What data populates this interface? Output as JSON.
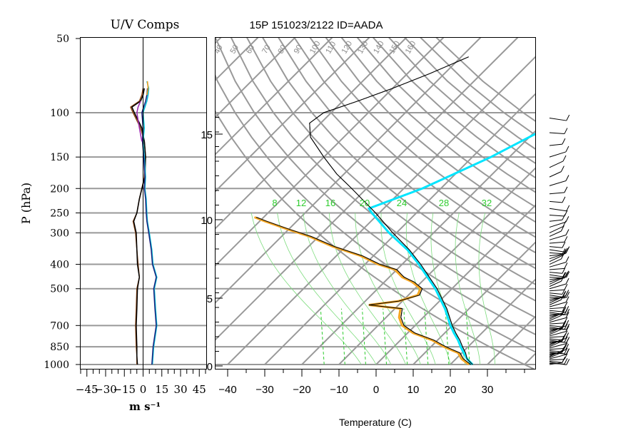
{
  "chart_data": [
    {
      "type": "line",
      "title": "U/V Comps",
      "ylabel": "P (hPa)",
      "xlabel": "m s⁻¹",
      "y_scale": "log",
      "ylim": [
        1000,
        50
      ],
      "xlim": [
        -50,
        50
      ],
      "yticks": [
        {
          "value": 50,
          "label": "50"
        },
        {
          "value": 100,
          "label": "100"
        },
        {
          "value": 150,
          "label": "150"
        },
        {
          "value": 200,
          "label": "200"
        },
        {
          "value": 250,
          "label": "250"
        },
        {
          "value": 300,
          "label": "300"
        },
        {
          "value": 400,
          "label": "400"
        },
        {
          "value": 500,
          "label": "500"
        },
        {
          "value": 700,
          "label": "700"
        },
        {
          "value": 850,
          "label": "850"
        },
        {
          "value": 1000,
          "label": "1000"
        }
      ],
      "gridlines_hpa": [
        100,
        150,
        200,
        250,
        300,
        400,
        500,
        700,
        850,
        1000
      ],
      "xticks": [
        {
          "value": -45,
          "label": "−45"
        },
        {
          "value": -30,
          "label": "−30"
        },
        {
          "value": -15,
          "label": "−15"
        },
        {
          "value": 0,
          "label": "0"
        },
        {
          "value": 15,
          "label": "15"
        },
        {
          "value": 30,
          "label": "30"
        },
        {
          "value": 45,
          "label": "45"
        }
      ],
      "series": [
        {
          "color": "#8b4513",
          "points": [
            [
              1000,
              -5
            ],
            [
              925,
              -5
            ],
            [
              850,
              -5.5
            ],
            [
              700,
              -6
            ],
            [
              600,
              -5.5
            ],
            [
              500,
              -5
            ],
            [
              450,
              -3
            ],
            [
              400,
              -4
            ],
            [
              350,
              -5
            ],
            [
              300,
              -6
            ],
            [
              270,
              -8
            ],
            [
              250,
              -5
            ],
            [
              220,
              -3
            ],
            [
              200,
              -1
            ],
            [
              180,
              1
            ],
            [
              150,
              2
            ],
            [
              130,
              1
            ],
            [
              115,
              -2
            ],
            [
              100,
              -8
            ],
            [
              95,
              -10
            ],
            [
              90,
              -3
            ],
            [
              85,
              -1
            ],
            [
              80,
              0
            ]
          ]
        },
        {
          "color": "#000000",
          "points": [
            [
              1000,
              -4.5
            ],
            [
              925,
              -5
            ],
            [
              850,
              -5
            ],
            [
              700,
              -5.5
            ],
            [
              600,
              -5
            ],
            [
              500,
              -4.5
            ],
            [
              450,
              -3
            ],
            [
              400,
              -4.5
            ],
            [
              350,
              -5
            ],
            [
              300,
              -5.5
            ],
            [
              270,
              -7.5
            ],
            [
              250,
              -5
            ],
            [
              220,
              -3
            ],
            [
              200,
              -1
            ],
            [
              180,
              1.5
            ],
            [
              150,
              2
            ],
            [
              130,
              1
            ],
            [
              115,
              -1
            ],
            [
              100,
              -7
            ],
            [
              95,
              -9
            ],
            [
              90,
              -2
            ],
            [
              85,
              0
            ],
            [
              80,
              1
            ]
          ]
        },
        {
          "color": "#00bcd4",
          "points": [
            [
              1000,
              7.5
            ],
            [
              925,
              8
            ],
            [
              850,
              8.5
            ],
            [
              700,
              11
            ],
            [
              600,
              10
            ],
            [
              500,
              9
            ],
            [
              450,
              11
            ],
            [
              400,
              8
            ],
            [
              350,
              7
            ],
            [
              300,
              5
            ],
            [
              270,
              3.5
            ],
            [
              250,
              3
            ],
            [
              220,
              2.5
            ],
            [
              200,
              1.5
            ],
            [
              180,
              2
            ],
            [
              150,
              1
            ],
            [
              130,
              0
            ],
            [
              115,
              1
            ],
            [
              100,
              0
            ],
            [
              90,
              3
            ],
            [
              85,
              4
            ],
            [
              80,
              4.5
            ],
            [
              75,
              3
            ]
          ]
        },
        {
          "color": "#1a237e",
          "points": [
            [
              1000,
              7
            ],
            [
              925,
              7.5
            ],
            [
              850,
              8
            ],
            [
              700,
              10.5
            ],
            [
              600,
              9.5
            ],
            [
              500,
              8.5
            ],
            [
              450,
              10.5
            ],
            [
              400,
              7.5
            ],
            [
              350,
              6.5
            ],
            [
              300,
              4.5
            ],
            [
              270,
              3
            ],
            [
              250,
              2.5
            ],
            [
              220,
              2
            ],
            [
              200,
              1
            ],
            [
              180,
              1.5
            ],
            [
              150,
              0.5
            ],
            [
              130,
              -0.5
            ],
            [
              115,
              0
            ],
            [
              100,
              -1
            ],
            [
              90,
              2
            ],
            [
              85,
              3
            ],
            [
              80,
              3.5
            ]
          ]
        },
        {
          "color": "#9c27b0",
          "points": [
            [
              130,
              -1
            ],
            [
              115,
              -3
            ],
            [
              100,
              -5
            ],
            [
              95,
              -4
            ],
            [
              90,
              -2
            ]
          ]
        },
        {
          "color": "#f39c12",
          "points": [
            [
              85,
              3
            ],
            [
              80,
              4
            ],
            [
              75,
              3.5
            ]
          ]
        }
      ]
    },
    {
      "type": "line",
      "subtype": "skew-t log-p",
      "title": "15P 151023/2122 ID=AADA",
      "xlabel": "Temperature (C)",
      "xlim": [
        -43,
        40
      ],
      "xticks": [
        {
          "value": -40,
          "label": "−40"
        },
        {
          "value": -30,
          "label": "−30"
        },
        {
          "value": -20,
          "label": "−20"
        },
        {
          "value": -10,
          "label": "−10"
        },
        {
          "value": 0,
          "label": "0"
        },
        {
          "value": 10,
          "label": "10"
        },
        {
          "value": 20,
          "label": "20"
        },
        {
          "value": 30,
          "label": "30"
        }
      ],
      "height_axis_km": [
        {
          "value": 0,
          "label": "0"
        },
        {
          "value": 5,
          "label": "5"
        },
        {
          "value": 10,
          "label": "10"
        },
        {
          "value": 15,
          "label": "15"
        }
      ],
      "dry_adiabat_labels": [
        "40",
        "50",
        "60",
        "70",
        "80",
        "90",
        "100",
        "110",
        "120",
        "130",
        "140",
        "150",
        "160"
      ],
      "mixing_ratio_labels": [
        "8",
        "12",
        "16",
        "20",
        "24",
        "28",
        "32"
      ],
      "grid": true,
      "series": [
        {
          "color": "#000000",
          "points": [
            [
              1000,
              26
            ],
            [
              950,
              23
            ],
            [
              900,
              21
            ],
            [
              850,
              18.5
            ],
            [
              800,
              16
            ],
            [
              750,
              13
            ],
            [
              700,
              10
            ],
            [
              600,
              4
            ],
            [
              500,
              -4
            ],
            [
              400,
              -15
            ],
            [
              350,
              -22
            ],
            [
              300,
              -31
            ],
            [
              250,
              -41
            ],
            [
              200,
              -54
            ],
            [
              175,
              -62
            ],
            [
              150,
              -70
            ],
            [
              125,
              -79
            ],
            [
              110,
              -83
            ],
            [
              100,
              -82
            ],
            [
              90,
              -76
            ],
            [
              80,
              -70
            ],
            [
              70,
              -64
            ],
            [
              60,
              -58
            ]
          ]
        },
        {
          "color": "#000000",
          "points": [
            [
              1000,
              25.5
            ],
            [
              950,
              22
            ],
            [
              900,
              19.5
            ],
            [
              850,
              14
            ],
            [
              800,
              9
            ],
            [
              750,
              2
            ],
            [
              700,
              -3
            ],
            [
              650,
              -6
            ],
            [
              600,
              -8
            ],
            [
              580,
              -18
            ],
            [
              560,
              -11
            ],
            [
              530,
              -7
            ],
            [
              500,
              -8
            ],
            [
              470,
              -12
            ],
            [
              450,
              -16
            ],
            [
              420,
              -20
            ],
            [
              400,
              -26
            ],
            [
              370,
              -33
            ],
            [
              340,
              -43
            ],
            [
              310,
              -52
            ],
            [
              290,
              -60
            ],
            [
              270,
              -68
            ],
            [
              260,
              -72
            ]
          ]
        },
        {
          "color": "#f5a623",
          "points": [
            [
              1000,
              25
            ],
            [
              950,
              21.5
            ],
            [
              900,
              19
            ],
            [
              850,
              13.5
            ],
            [
              800,
              8.5
            ],
            [
              750,
              1.5
            ],
            [
              700,
              -3.5
            ],
            [
              650,
              -6.5
            ],
            [
              600,
              -8.5
            ],
            [
              580,
              -18
            ],
            [
              560,
              -11
            ],
            [
              530,
              -7.5
            ],
            [
              500,
              -8.5
            ],
            [
              470,
              -12.5
            ],
            [
              450,
              -16.5
            ],
            [
              420,
              -20.5
            ],
            [
              400,
              -26.5
            ],
            [
              370,
              -33.5
            ],
            [
              340,
              -43.5
            ],
            [
              310,
              -52.5
            ],
            [
              290,
              -60.5
            ],
            [
              270,
              -68.5
            ],
            [
              260,
              -72.5
            ]
          ]
        },
        {
          "color": "#00e5ff",
          "points": [
            [
              1000,
              26
            ],
            [
              950,
              23
            ],
            [
              900,
              20.5
            ],
            [
              850,
              18
            ],
            [
              800,
              15.5
            ],
            [
              750,
              12.5
            ],
            [
              700,
              9.5
            ],
            [
              600,
              3.5
            ],
            [
              500,
              -4.5
            ],
            [
              400,
              -15.5
            ],
            [
              350,
              -22.5
            ],
            [
              300,
              -32
            ],
            [
              250,
              -42
            ],
            [
              240,
              -44
            ],
            [
              200,
              -35
            ],
            [
              150,
              -25
            ],
            [
              100,
              -14
            ],
            [
              80,
              -6
            ]
          ]
        }
      ]
    }
  ]
}
